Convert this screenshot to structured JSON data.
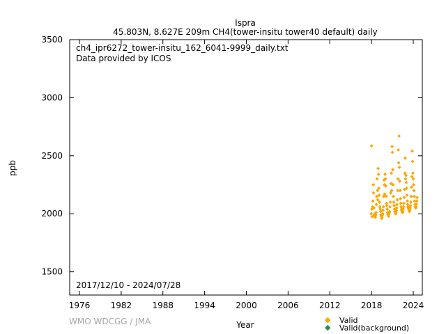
{
  "header": {
    "station": "Ispra",
    "subtitle": "45.803N, 8.627E 209m    CH4(tower-insitu tower40 default) daily"
  },
  "plot_info": {
    "filename": "ch4_ipr6272_tower-insitu_162_6041-9999_daily.txt",
    "provider": "Data provided by ICOS",
    "date_range": "2017/12/10 - 2024/07/28"
  },
  "footer": {
    "watermark": "WMO WDCGG / JMA"
  },
  "legend": {
    "valid": "Valid",
    "valid_background": "Valid(background)"
  },
  "colors": {
    "valid": "#ffa500",
    "valid_background": "#2e8b57",
    "axis": "#000000",
    "watermark": "#a6a6a6"
  },
  "chart_data": {
    "type": "scatter",
    "title": "Ispra",
    "xlabel": "Year",
    "ylabel": "ppb",
    "xlim": [
      1974.6,
      2025.3
    ],
    "ylim": [
      1300,
      3500
    ],
    "x_ticks": [
      1976,
      1982,
      1988,
      1994,
      2000,
      2006,
      2012,
      2018,
      2024
    ],
    "y_ticks": [
      1500,
      2000,
      2500,
      3000,
      3500
    ],
    "grid": false,
    "legend_position": "bottom-right",
    "series": [
      {
        "name": "Valid",
        "color": "#ffa500",
        "points": [
          [
            2017.95,
            2000
          ],
          [
            2018.0,
            2585
          ],
          [
            2018.05,
            2040
          ],
          [
            2018.1,
            1975
          ],
          [
            2018.15,
            2060
          ],
          [
            2018.2,
            2110
          ],
          [
            2018.25,
            2250
          ],
          [
            2018.3,
            2180
          ],
          [
            2018.35,
            2050
          ],
          [
            2018.4,
            1990
          ],
          [
            2018.45,
            1985
          ],
          [
            2018.5,
            2000
          ],
          [
            2018.55,
            1970
          ],
          [
            2018.6,
            1990
          ],
          [
            2018.65,
            2010
          ],
          [
            2018.7,
            2080
          ],
          [
            2018.75,
            2150
          ],
          [
            2018.8,
            2300
          ],
          [
            2018.85,
            2200
          ],
          [
            2018.9,
            2120
          ],
          [
            2018.95,
            2390
          ],
          [
            2019.0,
            2340
          ],
          [
            2019.05,
            2220
          ],
          [
            2019.1,
            2160
          ],
          [
            2019.15,
            2100
          ],
          [
            2019.2,
            2060
          ],
          [
            2019.25,
            2040
          ],
          [
            2019.3,
            2020
          ],
          [
            2019.35,
            1990
          ],
          [
            2019.4,
            1980
          ],
          [
            2019.45,
            1960
          ],
          [
            2019.5,
            1970
          ],
          [
            2019.55,
            1990
          ],
          [
            2019.6,
            2000
          ],
          [
            2019.65,
            2030
          ],
          [
            2019.7,
            2060
          ],
          [
            2019.75,
            2150
          ],
          [
            2019.8,
            2290
          ],
          [
            2019.85,
            2250
          ],
          [
            2019.9,
            2170
          ],
          [
            2019.95,
            2340
          ],
          [
            2020.0,
            2300
          ],
          [
            2020.05,
            2240
          ],
          [
            2020.1,
            2150
          ],
          [
            2020.15,
            2090
          ],
          [
            2020.2,
            2070
          ],
          [
            2020.25,
            2040
          ],
          [
            2020.3,
            2010
          ],
          [
            2020.35,
            2000
          ],
          [
            2020.4,
            1990
          ],
          [
            2020.45,
            1980
          ],
          [
            2020.5,
            2000
          ],
          [
            2020.55,
            2010
          ],
          [
            2020.6,
            2020
          ],
          [
            2020.65,
            2060
          ],
          [
            2020.7,
            2100
          ],
          [
            2020.75,
            2180
          ],
          [
            2020.8,
            2260
          ],
          [
            2020.85,
            2350
          ],
          [
            2020.9,
            2200
          ],
          [
            2020.95,
            2580
          ],
          [
            2021.0,
            2530
          ],
          [
            2021.05,
            2380
          ],
          [
            2021.1,
            2250
          ],
          [
            2021.15,
            2150
          ],
          [
            2021.2,
            2100
          ],
          [
            2021.25,
            2070
          ],
          [
            2021.3,
            2040
          ],
          [
            2021.35,
            2020
          ],
          [
            2021.4,
            2010
          ],
          [
            2021.45,
            2000
          ],
          [
            2021.5,
            2010
          ],
          [
            2021.55,
            2030
          ],
          [
            2021.6,
            2050
          ],
          [
            2021.65,
            2080
          ],
          [
            2021.7,
            2120
          ],
          [
            2021.75,
            2200
          ],
          [
            2021.8,
            2300
          ],
          [
            2021.85,
            2550
          ],
          [
            2021.9,
            2440
          ],
          [
            2021.95,
            2670
          ],
          [
            2022.0,
            2400
          ],
          [
            2022.05,
            2280
          ],
          [
            2022.1,
            2200
          ],
          [
            2022.15,
            2130
          ],
          [
            2022.2,
            2090
          ],
          [
            2022.25,
            2060
          ],
          [
            2022.3,
            2040
          ],
          [
            2022.35,
            2030
          ],
          [
            2022.4,
            2020
          ],
          [
            2022.45,
            2010
          ],
          [
            2022.5,
            2020
          ],
          [
            2022.55,
            2040
          ],
          [
            2022.6,
            2060
          ],
          [
            2022.65,
            2090
          ],
          [
            2022.7,
            2140
          ],
          [
            2022.75,
            2210
          ],
          [
            2022.8,
            2350
          ],
          [
            2022.85,
            2480
          ],
          [
            2022.9,
            2300
          ],
          [
            2022.95,
            2330
          ],
          [
            2023.0,
            2270
          ],
          [
            2023.05,
            2220
          ],
          [
            2023.1,
            2160
          ],
          [
            2023.15,
            2110
          ],
          [
            2023.2,
            2080
          ],
          [
            2023.25,
            2060
          ],
          [
            2023.3,
            2050
          ],
          [
            2023.35,
            2040
          ],
          [
            2023.4,
            2030
          ],
          [
            2023.45,
            2020
          ],
          [
            2023.5,
            2030
          ],
          [
            2023.55,
            2050
          ],
          [
            2023.6,
            2070
          ],
          [
            2023.65,
            2100
          ],
          [
            2023.7,
            2150
          ],
          [
            2023.75,
            2230
          ],
          [
            2023.8,
            2320
          ],
          [
            2023.85,
            2540
          ],
          [
            2023.9,
            2450
          ],
          [
            2023.95,
            2350
          ],
          [
            2024.0,
            2300
          ],
          [
            2024.05,
            2250
          ],
          [
            2024.1,
            2200
          ],
          [
            2024.15,
            2150
          ],
          [
            2024.2,
            2110
          ],
          [
            2024.25,
            2080
          ],
          [
            2024.3,
            2060
          ],
          [
            2024.35,
            2050
          ],
          [
            2024.4,
            2060
          ],
          [
            2024.45,
            2080
          ],
          [
            2024.5,
            2110
          ],
          [
            2024.55,
            2140
          ]
        ]
      },
      {
        "name": "Valid(background)",
        "color": "#2e8b57",
        "points": []
      }
    ]
  }
}
